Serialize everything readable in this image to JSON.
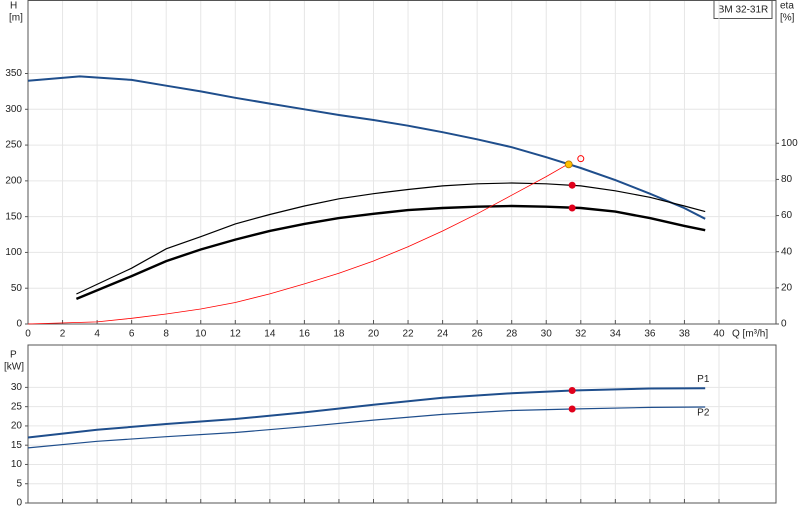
{
  "chart_data": [
    {
      "type": "line",
      "title": "BM 32-31R",
      "ylabel": "H",
      "yunit": "[m]",
      "y2label": "eta",
      "y2unit": "[%]",
      "xlabel": "Q [m³/h]",
      "xlim": [
        0,
        43.3
      ],
      "ylim": [
        0,
        452
      ],
      "y2lim": [
        0,
        179
      ],
      "xticks": [
        0,
        2,
        4,
        6,
        8,
        10,
        12,
        14,
        16,
        18,
        20,
        22,
        24,
        26,
        28,
        30,
        32,
        34,
        36,
        38,
        40
      ],
      "yticks": [
        0,
        50,
        100,
        150,
        200,
        250,
        300,
        350
      ],
      "y2ticks": [
        0,
        20,
        40,
        60,
        80,
        100
      ],
      "grid": true,
      "series": [
        {
          "color": "#1f4e8c",
          "width": 2,
          "style": "line",
          "x": [
            0,
            3,
            6,
            8,
            10,
            12,
            14,
            16,
            18,
            20,
            22,
            24,
            26,
            28,
            30,
            32,
            34,
            36,
            38,
            39.2
          ],
          "values": [
            340,
            346,
            341,
            333,
            325,
            316,
            308,
            300,
            292,
            285,
            277,
            268,
            258,
            247,
            233,
            218,
            201,
            182,
            162,
            147
          ]
        },
        {
          "color": "#000000",
          "width": 1.2,
          "style": "line",
          "axis": "y2",
          "x": [
            2.8,
            6,
            8,
            10,
            12,
            14,
            16,
            18,
            20,
            22,
            24,
            26,
            28,
            30,
            32,
            34,
            36,
            38,
            39.2
          ],
          "values": [
            16.6,
            30.9,
            41.6,
            48.3,
            55.4,
            60.6,
            65.3,
            69.3,
            72.1,
            74.4,
            76.4,
            77.6,
            78,
            77.6,
            76.4,
            73.7,
            70.1,
            65.3,
            62.2
          ]
        },
        {
          "color": "#000000",
          "width": 2.4,
          "style": "line",
          "axis": "y2",
          "x": [
            2.8,
            6,
            8,
            10,
            12,
            14,
            16,
            18,
            20,
            22,
            24,
            26,
            28,
            30,
            32,
            34,
            36,
            38,
            39.2
          ],
          "values": [
            13.9,
            26.5,
            34.8,
            41.2,
            46.7,
            51.5,
            55.4,
            58.6,
            61,
            63,
            64.2,
            64.9,
            65.3,
            64.9,
            64.2,
            62.2,
            58.6,
            54.3,
            51.9
          ]
        },
        {
          "color": "#ff0000",
          "width": 0.8,
          "style": "line",
          "x": [
            0,
            4,
            6,
            8,
            10,
            12,
            14,
            16,
            18,
            20,
            22,
            24,
            26,
            28,
            30,
            31.3
          ],
          "values": [
            0,
            3,
            8,
            14,
            21,
            30,
            42,
            56,
            71,
            88,
            108,
            130,
            154,
            180,
            206,
            224
          ]
        },
        {
          "color": "#e0001b",
          "style": "marker",
          "axis": "y2",
          "x": [
            31.5,
            31.5
          ],
          "values": [
            76.8,
            64.2
          ]
        },
        {
          "color": "#ffc000",
          "style": "marker",
          "x": [
            31.3
          ],
          "values": [
            223
          ]
        },
        {
          "color": "#ff0000",
          "style": "open",
          "x": [
            32
          ],
          "values": [
            231
          ]
        }
      ]
    },
    {
      "type": "line",
      "ylabel": "P",
      "yunit": "[kW]",
      "xlim": [
        0,
        43.3
      ],
      "ylim": [
        0,
        41
      ],
      "yticks": [
        0,
        5,
        10,
        15,
        20,
        25,
        30
      ],
      "grid": true,
      "series": [
        {
          "name": "P1",
          "color": "#1f4e8c",
          "width": 2,
          "style": "line",
          "x": [
            0,
            4,
            8,
            12,
            16,
            20,
            24,
            28,
            31.5,
            36,
            39.2
          ],
          "values": [
            17,
            19,
            20.5,
            21.8,
            23.5,
            25.5,
            27.3,
            28.5,
            29.2,
            29.7,
            29.8
          ]
        },
        {
          "name": "P2",
          "color": "#1f4e8c",
          "width": 1.2,
          "style": "line",
          "x": [
            0,
            4,
            8,
            12,
            16,
            20,
            24,
            28,
            31.5,
            36,
            39.2
          ],
          "values": [
            14.3,
            16,
            17.2,
            18.3,
            19.8,
            21.5,
            23,
            24,
            24.4,
            24.8,
            24.9
          ]
        },
        {
          "color": "#e0001b",
          "style": "marker",
          "x": [
            31.5,
            31.5
          ],
          "values": [
            29.2,
            24.4
          ]
        }
      ]
    }
  ]
}
